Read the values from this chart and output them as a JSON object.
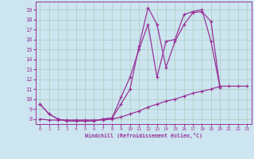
{
  "xlabel": "Windchill (Refroidissement éolien,°C)",
  "background_color": "#cce5f0",
  "grid_color": "#aaccbb",
  "line_color": "#993399",
  "xlim": [
    -0.5,
    23.5
  ],
  "ylim": [
    7.5,
    19.8
  ],
  "xticks": [
    0,
    1,
    2,
    3,
    4,
    5,
    6,
    7,
    8,
    9,
    10,
    11,
    12,
    13,
    14,
    15,
    16,
    17,
    18,
    19,
    20,
    21,
    22,
    23
  ],
  "yticks": [
    8,
    9,
    10,
    11,
    12,
    13,
    14,
    15,
    16,
    17,
    18,
    19
  ],
  "line1_x": [
    0,
    1,
    2,
    3,
    4,
    5,
    6,
    7,
    8,
    9,
    10,
    11,
    12,
    13,
    14,
    15,
    16,
    17,
    18,
    19,
    20
  ],
  "line1_y": [
    9.5,
    8.5,
    8.0,
    7.8,
    7.8,
    7.8,
    7.8,
    8.0,
    8.1,
    9.5,
    11.0,
    15.3,
    19.2,
    17.5,
    13.2,
    15.8,
    17.5,
    18.7,
    18.8,
    17.8,
    11.2
  ],
  "line2_x": [
    0,
    1,
    2,
    3,
    4,
    5,
    6,
    7,
    8,
    9,
    10,
    11,
    12,
    13,
    14,
    15,
    16,
    17,
    18,
    19,
    20
  ],
  "line2_y": [
    9.5,
    8.5,
    8.0,
    7.8,
    7.8,
    7.8,
    7.8,
    8.0,
    8.1,
    10.2,
    12.2,
    15.0,
    17.5,
    12.2,
    15.8,
    16.0,
    18.5,
    18.8,
    19.0,
    15.8,
    11.2
  ],
  "line3_x": [
    0,
    1,
    2,
    3,
    4,
    5,
    6,
    7,
    8,
    9,
    10,
    11,
    12,
    13,
    14,
    15,
    16,
    17,
    18,
    19,
    20,
    21,
    22,
    23
  ],
  "line3_y": [
    8.0,
    7.9,
    7.9,
    7.9,
    7.9,
    7.9,
    7.9,
    7.9,
    8.0,
    8.2,
    8.5,
    8.8,
    9.2,
    9.5,
    9.8,
    10.0,
    10.3,
    10.6,
    10.8,
    11.0,
    11.3,
    11.3,
    11.3,
    11.3
  ]
}
